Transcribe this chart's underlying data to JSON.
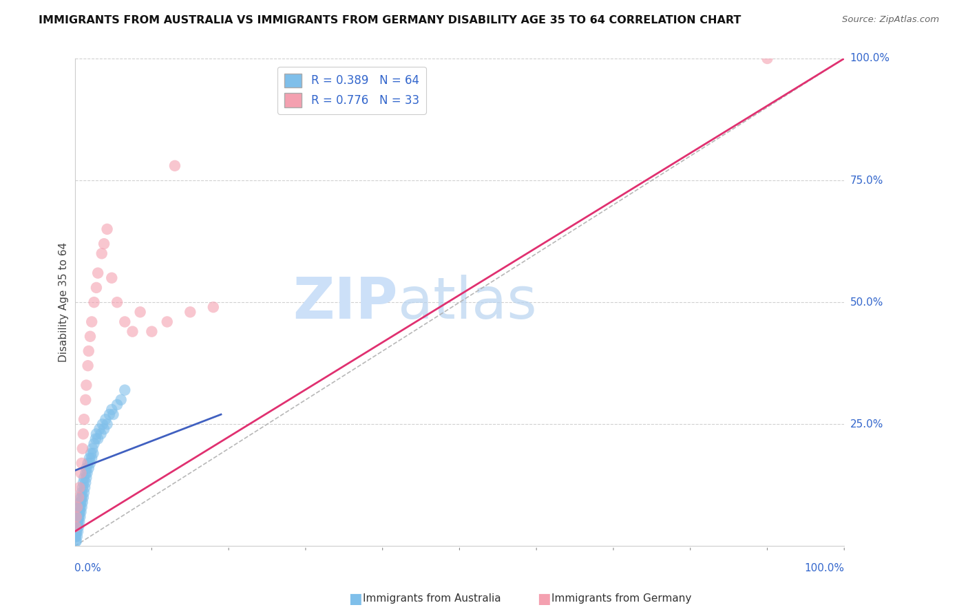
{
  "title": "IMMIGRANTS FROM AUSTRALIA VS IMMIGRANTS FROM GERMANY DISABILITY AGE 35 TO 64 CORRELATION CHART",
  "source": "Source: ZipAtlas.com",
  "ylabel": "Disability Age 35 to 64",
  "legend_label1": "Immigrants from Australia",
  "legend_label2": "Immigrants from Germany",
  "R1": 0.389,
  "N1": 64,
  "R2": 0.776,
  "N2": 33,
  "color_australia": "#7fbfea",
  "color_germany": "#f4a0b0",
  "color_line_australia": "#4060c0",
  "color_line_germany": "#e03070",
  "color_ref_line": "#b0b0b0",
  "background_color": "#ffffff",
  "grid_color": "#d0d0d0",
  "title_color": "#111111",
  "axis_label_color": "#3366cc",
  "watermark_zip_color": "#cce0f8",
  "watermark_atlas_color": "#b8d4f0",
  "aus_line_x0": 0.0,
  "aus_line_x1": 0.19,
  "aus_line_y0": 0.155,
  "aus_line_y1": 0.27,
  "ger_line_x0": 0.0,
  "ger_line_x1": 1.0,
  "ger_line_y0": 0.03,
  "ger_line_y1": 1.0,
  "ref_line_x0": 0.0,
  "ref_line_x1": 1.0,
  "ref_line_y0": 0.0,
  "ref_line_y1": 1.0,
  "aus_x": [
    0.001,
    0.002,
    0.002,
    0.003,
    0.003,
    0.004,
    0.004,
    0.005,
    0.005,
    0.006,
    0.006,
    0.006,
    0.007,
    0.007,
    0.008,
    0.008,
    0.009,
    0.009,
    0.01,
    0.01,
    0.011,
    0.011,
    0.012,
    0.012,
    0.013,
    0.014,
    0.014,
    0.015,
    0.015,
    0.016,
    0.017,
    0.018,
    0.019,
    0.02,
    0.021,
    0.022,
    0.023,
    0.024,
    0.025,
    0.027,
    0.028,
    0.03,
    0.032,
    0.034,
    0.036,
    0.038,
    0.04,
    0.042,
    0.045,
    0.048,
    0.05,
    0.055,
    0.06,
    0.065,
    0.001,
    0.001,
    0.002,
    0.003,
    0.004,
    0.005,
    0.006,
    0.007,
    0.008,
    0.009
  ],
  "aus_y": [
    0.02,
    0.01,
    0.03,
    0.02,
    0.04,
    0.03,
    0.05,
    0.04,
    0.06,
    0.05,
    0.07,
    0.08,
    0.06,
    0.09,
    0.07,
    0.1,
    0.08,
    0.11,
    0.09,
    0.12,
    0.1,
    0.13,
    0.11,
    0.14,
    0.12,
    0.13,
    0.15,
    0.14,
    0.16,
    0.15,
    0.17,
    0.16,
    0.18,
    0.17,
    0.19,
    0.18,
    0.2,
    0.19,
    0.21,
    0.22,
    0.23,
    0.22,
    0.24,
    0.23,
    0.25,
    0.24,
    0.26,
    0.25,
    0.27,
    0.28,
    0.27,
    0.29,
    0.3,
    0.32,
    0.01,
    0.02,
    0.03,
    0.04,
    0.05,
    0.06,
    0.07,
    0.08,
    0.09,
    0.1
  ],
  "ger_x": [
    0.001,
    0.002,
    0.003,
    0.005,
    0.006,
    0.008,
    0.009,
    0.01,
    0.011,
    0.012,
    0.014,
    0.015,
    0.017,
    0.018,
    0.02,
    0.022,
    0.025,
    0.028,
    0.03,
    0.035,
    0.038,
    0.042,
    0.048,
    0.055,
    0.065,
    0.075,
    0.085,
    0.1,
    0.12,
    0.15,
    0.18,
    0.9,
    0.13
  ],
  "ger_y": [
    0.04,
    0.06,
    0.08,
    0.1,
    0.12,
    0.15,
    0.17,
    0.2,
    0.23,
    0.26,
    0.3,
    0.33,
    0.37,
    0.4,
    0.43,
    0.46,
    0.5,
    0.53,
    0.56,
    0.6,
    0.62,
    0.65,
    0.55,
    0.5,
    0.46,
    0.44,
    0.48,
    0.44,
    0.46,
    0.48,
    0.49,
    1.0,
    0.78
  ],
  "xlim": [
    0.0,
    1.0
  ],
  "ylim": [
    0.0,
    1.0
  ],
  "ytick_right_values": [
    0.25,
    0.5,
    0.75,
    1.0
  ],
  "ytick_right_labels": [
    "25.0%",
    "50.0%",
    "75.0%",
    "100.0%"
  ]
}
